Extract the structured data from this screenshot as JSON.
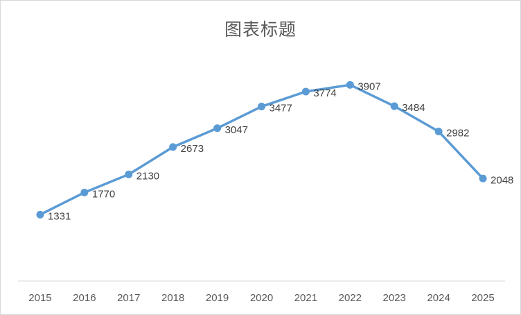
{
  "chart_data": {
    "type": "line",
    "title": "图表标题",
    "categories": [
      "2015",
      "2016",
      "2017",
      "2018",
      "2019",
      "2020",
      "2021",
      "2022",
      "2023",
      "2024",
      "2025"
    ],
    "values": [
      1331,
      1770,
      2130,
      2673,
      3047,
      3477,
      3774,
      3907,
      3484,
      2982,
      2048
    ],
    "xlabel": "",
    "ylabel": "",
    "ylim": [
      0,
      4600
    ],
    "grid": false,
    "legend": "none",
    "data_labels": "right-of-point",
    "colors": {
      "line": "#5b9bd5",
      "marker": "#5b9bd5",
      "data_label": "#404040",
      "tick_label": "#595959",
      "axis_line": "#d9d9d9",
      "title": "#595959",
      "border": "#d7d7d7",
      "background": "#ffffff"
    }
  }
}
